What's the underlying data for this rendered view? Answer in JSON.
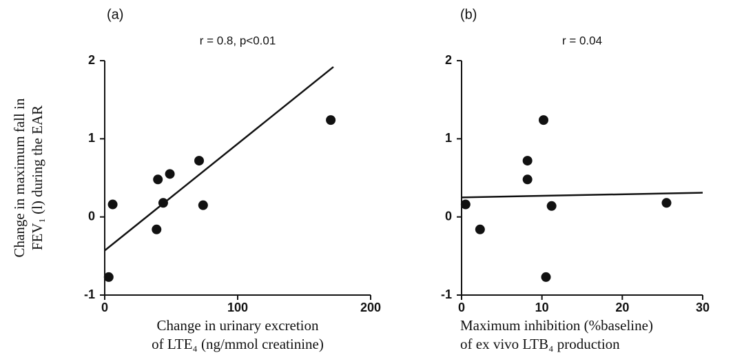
{
  "chart_data": [
    {
      "type": "scatter",
      "panel": "(a)",
      "subtitle": "r = 0.8,  p<0.01",
      "ylabel": [
        "Change in maximum fall in",
        "FEV₁ (l) during the EAR"
      ],
      "xlabel": [
        "Change in urinary excretion",
        "of LTE₄ (ng/mmol creatinine)"
      ],
      "x": [
        3,
        6,
        39,
        40,
        44,
        49,
        71,
        74,
        170
      ],
      "y": [
        -0.77,
        0.16,
        -0.16,
        0.48,
        0.18,
        0.55,
        0.72,
        0.15,
        1.24
      ],
      "fit": {
        "x": [
          0,
          172
        ],
        "y": [
          -0.43,
          1.92
        ]
      },
      "color": "#111111",
      "xlim": [
        0,
        200
      ],
      "xticks": [
        0,
        100,
        200
      ],
      "ylim": [
        -1,
        2
      ],
      "yticks": [
        -1,
        0,
        1,
        2
      ]
    },
    {
      "type": "scatter",
      "panel": "(b)",
      "subtitle": "r = 0.04",
      "xlabel": [
        "Maximum inhibition (%baseline)",
        "of ex vivo LTB₄ production"
      ],
      "x": [
        0.5,
        2.3,
        8.2,
        8.2,
        10.2,
        10.5,
        11.2,
        25.5
      ],
      "y": [
        0.16,
        -0.16,
        0.72,
        0.48,
        1.24,
        -0.77,
        0.14,
        0.18
      ],
      "fit": {
        "x": [
          0,
          30
        ],
        "y": [
          0.25,
          0.31
        ]
      },
      "color": "#111111",
      "xlim": [
        0,
        30
      ],
      "xticks": [
        0,
        10,
        20,
        30
      ],
      "ylim": [
        -1,
        2
      ],
      "yticks": [
        -1,
        0,
        1,
        2
      ]
    }
  ]
}
